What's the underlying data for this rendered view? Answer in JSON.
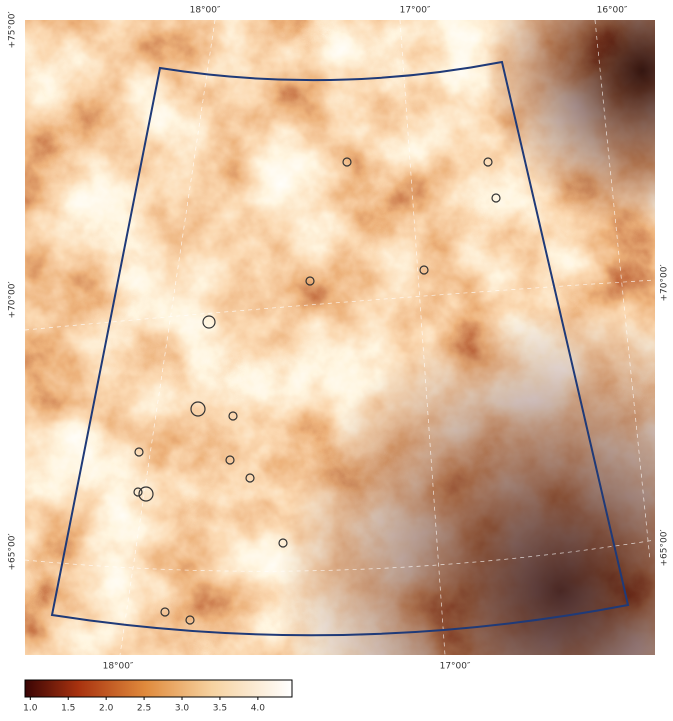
{
  "map": {
    "top_labels": [
      "18°00″",
      "17°00″",
      "16°00″"
    ],
    "bottom_labels": [
      "18°00″",
      "17°00″"
    ],
    "left_labels": [
      "+75°00′",
      "+70°00′",
      "+65°00′"
    ],
    "right_labels": [
      "+70°00′",
      "+65°00′"
    ],
    "colorbar": {
      "lim": [
        0.93,
        4.45
      ],
      "ticks": [
        {
          "value": 1,
          "label": "1.0"
        },
        {
          "value": 1.5,
          "label": "1.5"
        },
        {
          "value": 2,
          "label": "2.0"
        },
        {
          "value": 2.5,
          "label": "2.5"
        },
        {
          "value": 3,
          "label": "3.0"
        },
        {
          "value": 3.5,
          "label": "3.5"
        },
        {
          "value": 4,
          "label": "4.0"
        }
      ]
    }
  }
}
